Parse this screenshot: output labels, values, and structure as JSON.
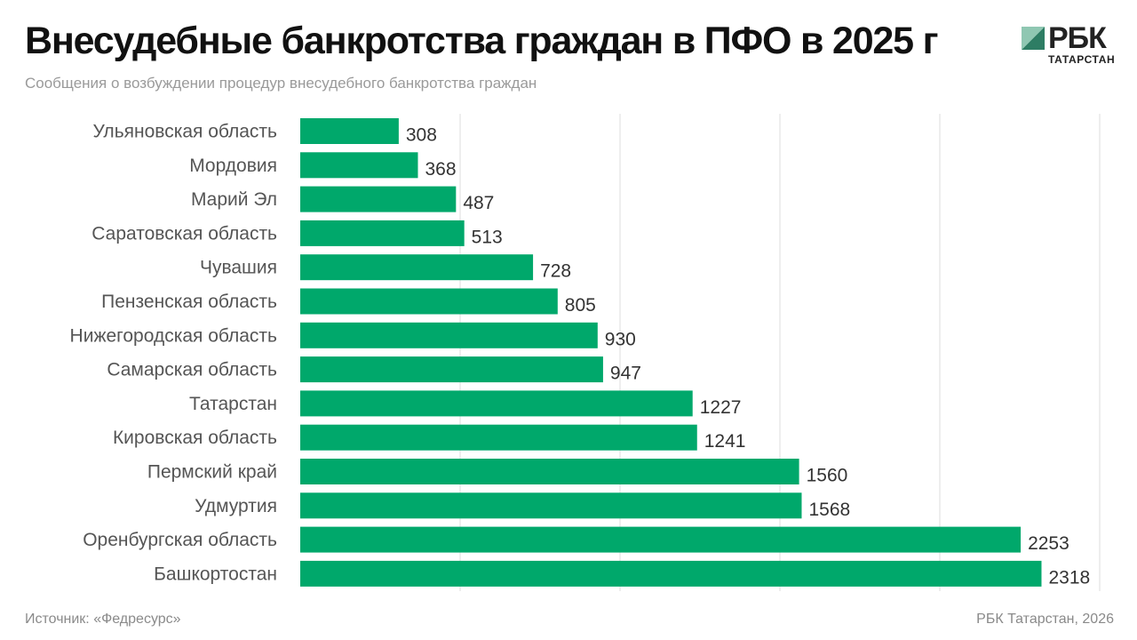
{
  "header": {
    "title": "Внесудебные банкротства граждан в ПФО в 2025 г",
    "subtitle": "Сообщения о возбуждении процедур внесудебного банкротства граждан"
  },
  "logo": {
    "text": "РБК",
    "sub": "ТАТАРСТАН"
  },
  "footer": {
    "source": "Источник: «Федресурс»",
    "credit": "РБК Татарстан, 2026"
  },
  "colors": {
    "bar": "#00a86b",
    "grid": "#dddddd",
    "label": "#555555",
    "value": "#333333"
  },
  "chart_data": {
    "type": "bar",
    "orientation": "horizontal",
    "title": "Внесудебные банкротства граждан в ПФО в 2025 г",
    "subtitle": "Сообщения о возбуждении процедур внесудебного банкротства граждан",
    "categories": [
      "Ульяновская область",
      "Мордовия",
      "Марий Эл",
      "Саратовская область",
      "Чувашия",
      "Пензенская область",
      "Нижегородская область",
      "Самарская область",
      "Татарстан",
      "Кировская область",
      "Пермский край",
      "Удмуртия",
      "Оренбургская область",
      "Башкортостан"
    ],
    "values": [
      308,
      368,
      487,
      513,
      728,
      805,
      930,
      947,
      1227,
      1241,
      1560,
      1568,
      2253,
      2318
    ],
    "xlim": [
      0,
      2500
    ],
    "gridlines": [
      500,
      1000,
      1500,
      2000,
      2500
    ],
    "xlabel": "",
    "ylabel": ""
  }
}
